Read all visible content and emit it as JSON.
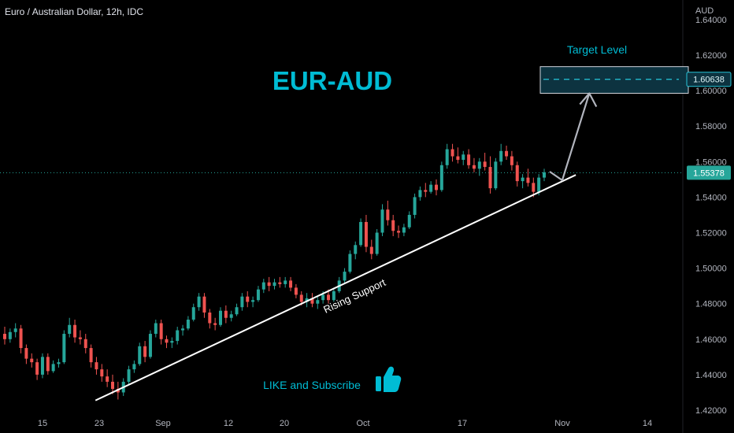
{
  "header": {
    "symbol_title": "Euro / Australian Dollar, 12h, IDC",
    "currency": "AUD"
  },
  "annotations": {
    "pair_title": "EUR-AUD",
    "target_label": "Target Level",
    "support_label": "Rising Support",
    "cta": "LIKE and Subscribe",
    "thumbs_icon": "thumbs-up-icon"
  },
  "price_tags": {
    "target": "1.60638",
    "current": "1.55378"
  },
  "colors": {
    "background": "#000000",
    "bull": "#26a69a",
    "bear": "#ef5350",
    "title_accent": "#00bcd4",
    "target_box_fill": "#0d3340",
    "current_tag": "#26a69a",
    "trendline": "#ffffff",
    "arrow": "#b2b5be"
  },
  "chart_data": {
    "type": "candlestick",
    "title": "Euro / Australian Dollar, 12h, IDC",
    "y_unit": "AUD",
    "ylim": [
      1.42,
      1.645
    ],
    "y_ticks": [
      "1.64000",
      "1.62000",
      "1.60000",
      "1.58000",
      "1.56000",
      "1.54000",
      "1.52000",
      "1.50000",
      "1.48000",
      "1.46000",
      "1.44000",
      "1.42000"
    ],
    "x_ticks": [
      "15",
      "23",
      "Sep",
      "12",
      "20",
      "Oct",
      "17",
      "Nov",
      "14"
    ],
    "current_price": 1.55378,
    "target_price": 1.60638,
    "target_zone": [
      1.5985,
      1.6135
    ],
    "support_line": {
      "label": "Rising Support",
      "from": {
        "date": "Aug 23",
        "price": 1.4255
      },
      "to": {
        "date": "Nov 2",
        "price": 1.5525
      }
    },
    "projection_arrow": {
      "from": {
        "date": "Oct 31",
        "price": 1.5495
      },
      "to": {
        "date": "Nov 4",
        "price": 1.5985
      }
    },
    "grid": false,
    "candles": [
      {
        "o": 1.463,
        "h": 1.467,
        "l": 1.457,
        "c": 1.46
      },
      {
        "o": 1.46,
        "h": 1.466,
        "l": 1.458,
        "c": 1.464
      },
      {
        "o": 1.464,
        "h": 1.469,
        "l": 1.461,
        "c": 1.466
      },
      {
        "o": 1.466,
        "h": 1.468,
        "l": 1.452,
        "c": 1.455
      },
      {
        "o": 1.455,
        "h": 1.457,
        "l": 1.446,
        "c": 1.449
      },
      {
        "o": 1.449,
        "h": 1.452,
        "l": 1.444,
        "c": 1.447
      },
      {
        "o": 1.447,
        "h": 1.449,
        "l": 1.437,
        "c": 1.44
      },
      {
        "o": 1.44,
        "h": 1.452,
        "l": 1.438,
        "c": 1.45
      },
      {
        "o": 1.45,
        "h": 1.452,
        "l": 1.44,
        "c": 1.442
      },
      {
        "o": 1.442,
        "h": 1.448,
        "l": 1.441,
        "c": 1.446
      },
      {
        "o": 1.446,
        "h": 1.449,
        "l": 1.444,
        "c": 1.447
      },
      {
        "o": 1.447,
        "h": 1.465,
        "l": 1.446,
        "c": 1.463
      },
      {
        "o": 1.463,
        "h": 1.472,
        "l": 1.461,
        "c": 1.468
      },
      {
        "o": 1.468,
        "h": 1.471,
        "l": 1.458,
        "c": 1.461
      },
      {
        "o": 1.461,
        "h": 1.465,
        "l": 1.457,
        "c": 1.46
      },
      {
        "o": 1.46,
        "h": 1.463,
        "l": 1.452,
        "c": 1.455
      },
      {
        "o": 1.455,
        "h": 1.457,
        "l": 1.444,
        "c": 1.447
      },
      {
        "o": 1.447,
        "h": 1.45,
        "l": 1.44,
        "c": 1.443
      },
      {
        "o": 1.443,
        "h": 1.446,
        "l": 1.436,
        "c": 1.439
      },
      {
        "o": 1.439,
        "h": 1.443,
        "l": 1.433,
        "c": 1.436
      },
      {
        "o": 1.436,
        "h": 1.44,
        "l": 1.429,
        "c": 1.432
      },
      {
        "o": 1.432,
        "h": 1.436,
        "l": 1.426,
        "c": 1.43
      },
      {
        "o": 1.43,
        "h": 1.438,
        "l": 1.428,
        "c": 1.436
      },
      {
        "o": 1.436,
        "h": 1.445,
        "l": 1.434,
        "c": 1.443
      },
      {
        "o": 1.443,
        "h": 1.448,
        "l": 1.441,
        "c": 1.446
      },
      {
        "o": 1.446,
        "h": 1.458,
        "l": 1.445,
        "c": 1.456
      },
      {
        "o": 1.456,
        "h": 1.459,
        "l": 1.447,
        "c": 1.45
      },
      {
        "o": 1.45,
        "h": 1.465,
        "l": 1.449,
        "c": 1.463
      },
      {
        "o": 1.463,
        "h": 1.471,
        "l": 1.461,
        "c": 1.469
      },
      {
        "o": 1.469,
        "h": 1.471,
        "l": 1.457,
        "c": 1.46
      },
      {
        "o": 1.46,
        "h": 1.462,
        "l": 1.455,
        "c": 1.458
      },
      {
        "o": 1.458,
        "h": 1.461,
        "l": 1.455,
        "c": 1.459
      },
      {
        "o": 1.459,
        "h": 1.467,
        "l": 1.457,
        "c": 1.465
      },
      {
        "o": 1.465,
        "h": 1.468,
        "l": 1.462,
        "c": 1.466
      },
      {
        "o": 1.466,
        "h": 1.473,
        "l": 1.465,
        "c": 1.471
      },
      {
        "o": 1.471,
        "h": 1.48,
        "l": 1.47,
        "c": 1.478
      },
      {
        "o": 1.478,
        "h": 1.486,
        "l": 1.476,
        "c": 1.484
      },
      {
        "o": 1.484,
        "h": 1.486,
        "l": 1.472,
        "c": 1.475
      },
      {
        "o": 1.475,
        "h": 1.477,
        "l": 1.466,
        "c": 1.469
      },
      {
        "o": 1.469,
        "h": 1.472,
        "l": 1.465,
        "c": 1.468
      },
      {
        "o": 1.468,
        "h": 1.478,
        "l": 1.467,
        "c": 1.476
      },
      {
        "o": 1.476,
        "h": 1.479,
        "l": 1.469,
        "c": 1.472
      },
      {
        "o": 1.472,
        "h": 1.476,
        "l": 1.47,
        "c": 1.474
      },
      {
        "o": 1.474,
        "h": 1.48,
        "l": 1.473,
        "c": 1.478
      },
      {
        "o": 1.478,
        "h": 1.486,
        "l": 1.476,
        "c": 1.484
      },
      {
        "o": 1.484,
        "h": 1.487,
        "l": 1.478,
        "c": 1.481
      },
      {
        "o": 1.481,
        "h": 1.484,
        "l": 1.478,
        "c": 1.482
      },
      {
        "o": 1.482,
        "h": 1.49,
        "l": 1.481,
        "c": 1.488
      },
      {
        "o": 1.488,
        "h": 1.494,
        "l": 1.486,
        "c": 1.492
      },
      {
        "o": 1.492,
        "h": 1.495,
        "l": 1.487,
        "c": 1.49
      },
      {
        "o": 1.49,
        "h": 1.494,
        "l": 1.488,
        "c": 1.492
      },
      {
        "o": 1.492,
        "h": 1.495,
        "l": 1.489,
        "c": 1.491
      },
      {
        "o": 1.491,
        "h": 1.495,
        "l": 1.489,
        "c": 1.493
      },
      {
        "o": 1.493,
        "h": 1.495,
        "l": 1.487,
        "c": 1.489
      },
      {
        "o": 1.489,
        "h": 1.491,
        "l": 1.483,
        "c": 1.485
      },
      {
        "o": 1.485,
        "h": 1.487,
        "l": 1.479,
        "c": 1.481
      },
      {
        "o": 1.481,
        "h": 1.486,
        "l": 1.478,
        "c": 1.483
      },
      {
        "o": 1.483,
        "h": 1.486,
        "l": 1.478,
        "c": 1.48
      },
      {
        "o": 1.48,
        "h": 1.484,
        "l": 1.477,
        "c": 1.482
      },
      {
        "o": 1.482,
        "h": 1.487,
        "l": 1.48,
        "c": 1.485
      },
      {
        "o": 1.485,
        "h": 1.488,
        "l": 1.48,
        "c": 1.482
      },
      {
        "o": 1.482,
        "h": 1.489,
        "l": 1.481,
        "c": 1.487
      },
      {
        "o": 1.487,
        "h": 1.495,
        "l": 1.486,
        "c": 1.493
      },
      {
        "o": 1.493,
        "h": 1.5,
        "l": 1.491,
        "c": 1.498
      },
      {
        "o": 1.498,
        "h": 1.51,
        "l": 1.497,
        "c": 1.508
      },
      {
        "o": 1.508,
        "h": 1.515,
        "l": 1.505,
        "c": 1.513
      },
      {
        "o": 1.513,
        "h": 1.528,
        "l": 1.512,
        "c": 1.526
      },
      {
        "o": 1.526,
        "h": 1.53,
        "l": 1.509,
        "c": 1.512
      },
      {
        "o": 1.512,
        "h": 1.516,
        "l": 1.505,
        "c": 1.508
      },
      {
        "o": 1.508,
        "h": 1.522,
        "l": 1.507,
        "c": 1.52
      },
      {
        "o": 1.52,
        "h": 1.536,
        "l": 1.518,
        "c": 1.533
      },
      {
        "o": 1.533,
        "h": 1.538,
        "l": 1.524,
        "c": 1.527
      },
      {
        "o": 1.527,
        "h": 1.53,
        "l": 1.518,
        "c": 1.521
      },
      {
        "o": 1.521,
        "h": 1.524,
        "l": 1.517,
        "c": 1.52
      },
      {
        "o": 1.52,
        "h": 1.525,
        "l": 1.518,
        "c": 1.523
      },
      {
        "o": 1.523,
        "h": 1.532,
        "l": 1.522,
        "c": 1.53
      },
      {
        "o": 1.53,
        "h": 1.542,
        "l": 1.528,
        "c": 1.54
      },
      {
        "o": 1.54,
        "h": 1.546,
        "l": 1.538,
        "c": 1.544
      },
      {
        "o": 1.544,
        "h": 1.548,
        "l": 1.54,
        "c": 1.543
      },
      {
        "o": 1.543,
        "h": 1.549,
        "l": 1.542,
        "c": 1.547
      },
      {
        "o": 1.547,
        "h": 1.55,
        "l": 1.541,
        "c": 1.544
      },
      {
        "o": 1.544,
        "h": 1.56,
        "l": 1.543,
        "c": 1.558
      },
      {
        "o": 1.558,
        "h": 1.57,
        "l": 1.556,
        "c": 1.567
      },
      {
        "o": 1.567,
        "h": 1.57,
        "l": 1.56,
        "c": 1.563
      },
      {
        "o": 1.563,
        "h": 1.568,
        "l": 1.559,
        "c": 1.561
      },
      {
        "o": 1.561,
        "h": 1.566,
        "l": 1.558,
        "c": 1.564
      },
      {
        "o": 1.564,
        "h": 1.567,
        "l": 1.556,
        "c": 1.558
      },
      {
        "o": 1.558,
        "h": 1.562,
        "l": 1.554,
        "c": 1.556
      },
      {
        "o": 1.556,
        "h": 1.562,
        "l": 1.552,
        "c": 1.56
      },
      {
        "o": 1.56,
        "h": 1.565,
        "l": 1.555,
        "c": 1.557
      },
      {
        "o": 1.557,
        "h": 1.563,
        "l": 1.542,
        "c": 1.545
      },
      {
        "o": 1.545,
        "h": 1.562,
        "l": 1.544,
        "c": 1.56
      },
      {
        "o": 1.56,
        "h": 1.57,
        "l": 1.558,
        "c": 1.566
      },
      {
        "o": 1.566,
        "h": 1.569,
        "l": 1.561,
        "c": 1.563
      },
      {
        "o": 1.563,
        "h": 1.566,
        "l": 1.555,
        "c": 1.558
      },
      {
        "o": 1.558,
        "h": 1.56,
        "l": 1.546,
        "c": 1.549
      },
      {
        "o": 1.549,
        "h": 1.553,
        "l": 1.545,
        "c": 1.551
      },
      {
        "o": 1.551,
        "h": 1.556,
        "l": 1.546,
        "c": 1.548
      },
      {
        "o": 1.548,
        "h": 1.551,
        "l": 1.54,
        "c": 1.543
      },
      {
        "o": 1.543,
        "h": 1.553,
        "l": 1.541,
        "c": 1.551
      },
      {
        "o": 1.551,
        "h": 1.556,
        "l": 1.549,
        "c": 1.554
      }
    ]
  }
}
